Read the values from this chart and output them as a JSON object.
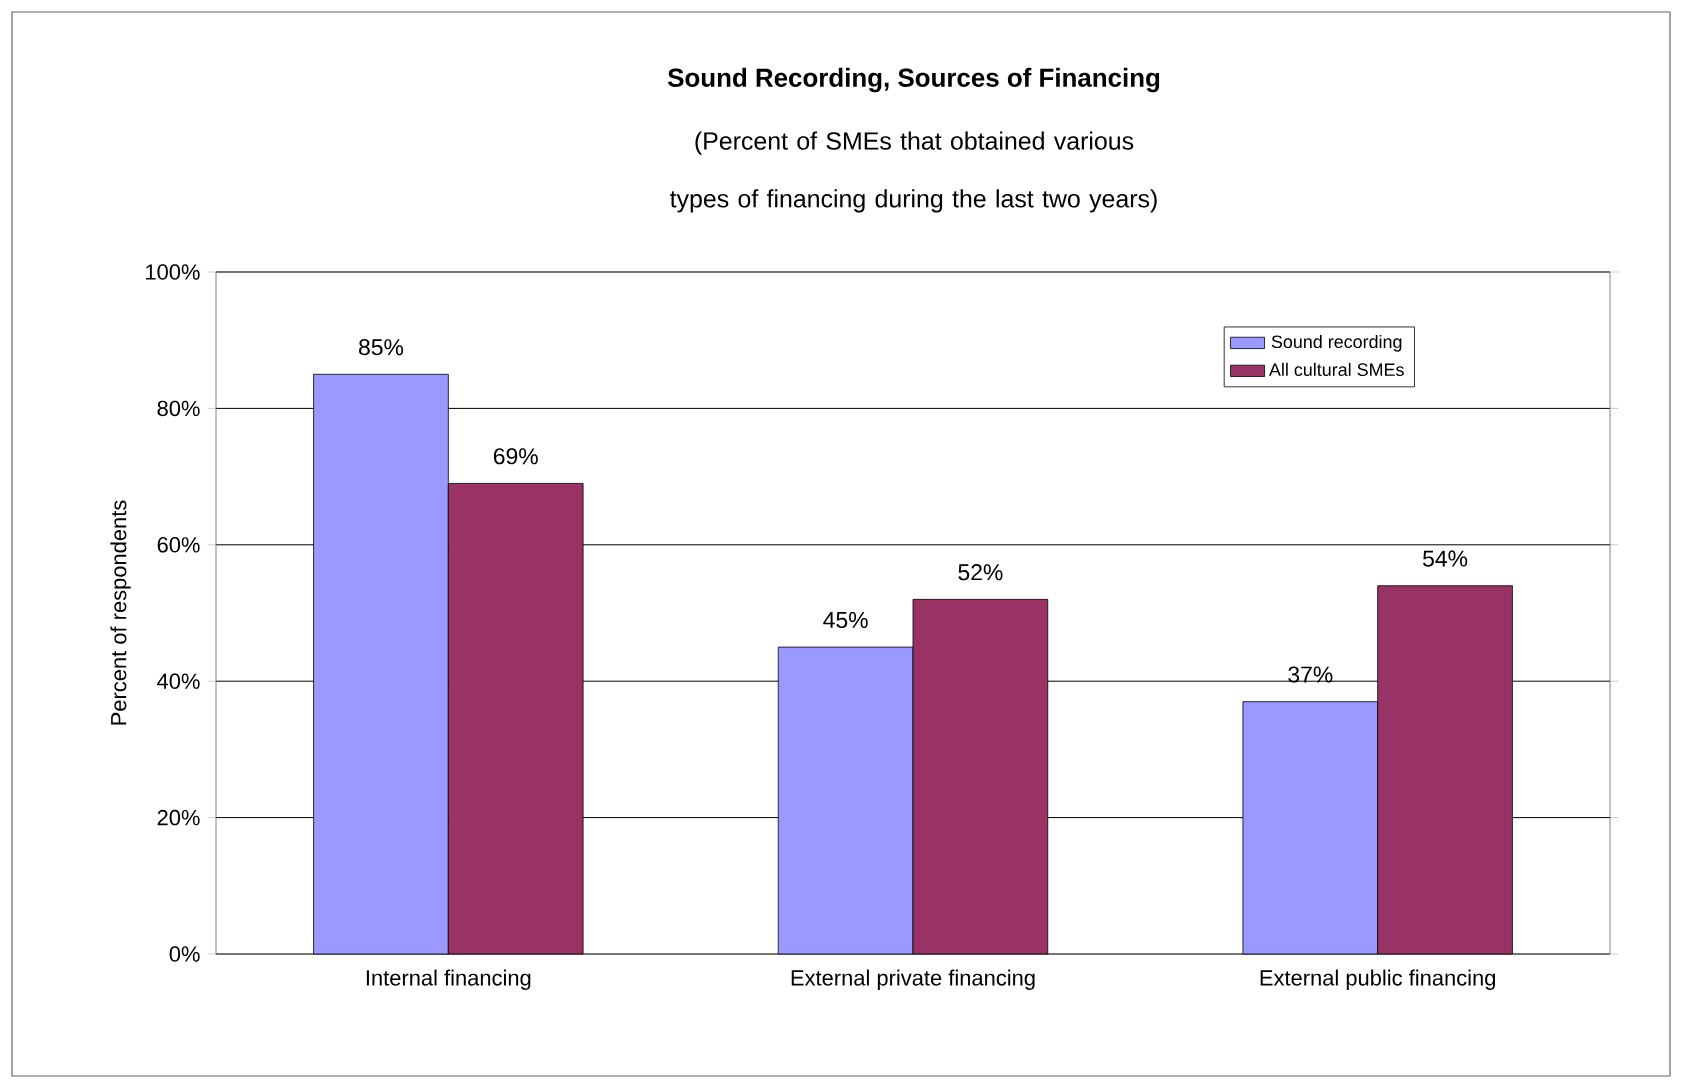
{
  "chart_data": {
    "type": "bar",
    "title": "Sound Recording, Sources of Financing",
    "subtitle": "(Percent of SMEs that obtained various types of financing during the last two years)",
    "ylabel": "Percent of respondents",
    "categories": [
      "Internal financing",
      "External private financing",
      "External public financing"
    ],
    "series": [
      {
        "name": "Sound recording",
        "color": "#9999ff",
        "values": [
          85,
          45,
          37
        ],
        "value_labels": [
          "85%",
          "45%",
          "37%"
        ]
      },
      {
        "name": "All cultural SMEs",
        "color": "#993366",
        "values": [
          69,
          52,
          54
        ],
        "value_labels": [
          "69%",
          "52%",
          "54%"
        ]
      }
    ],
    "ylim": [
      0,
      100
    ],
    "yticks": [
      {
        "value": 0,
        "label": "0%"
      },
      {
        "value": 20,
        "label": "20%"
      },
      {
        "value": 40,
        "label": "40%"
      },
      {
        "value": 60,
        "label": "60%"
      },
      {
        "value": 80,
        "label": "80%"
      },
      {
        "value": 100,
        "label": "100%"
      }
    ],
    "grid": "y",
    "legend": "top right"
  }
}
